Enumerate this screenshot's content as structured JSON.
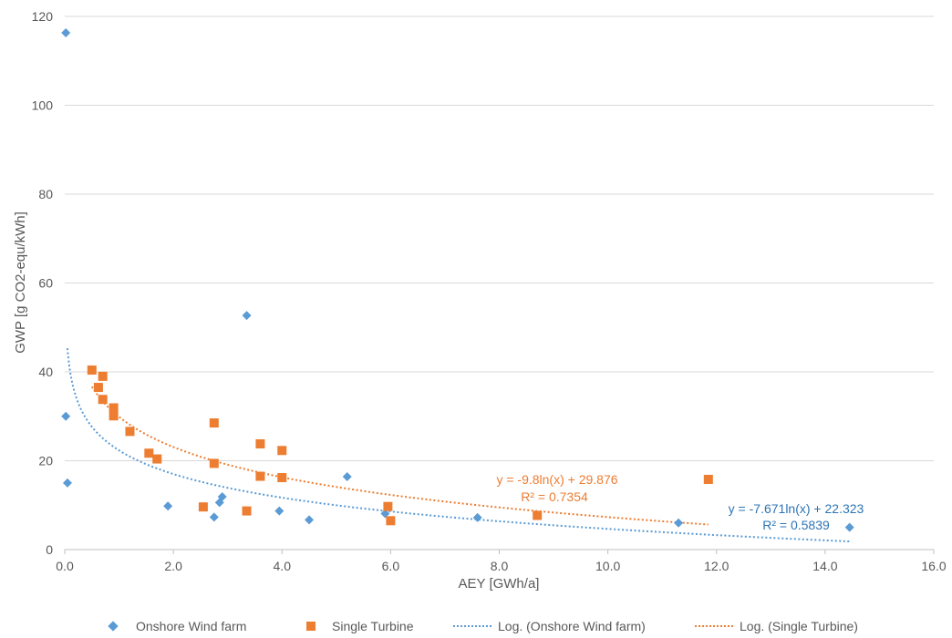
{
  "chart_data": {
    "type": "scatter",
    "title": "",
    "xlabel": "AEY [GWh/a]",
    "ylabel": "GWP [g CO2-equ/kWh]",
    "xlim": [
      0,
      16
    ],
    "ylim": [
      0,
      120
    ],
    "xticks": [
      "0.0",
      "2.0",
      "4.0",
      "6.0",
      "8.0",
      "10.0",
      "12.0",
      "14.0",
      "16.0"
    ],
    "yticks": [
      "0",
      "20",
      "40",
      "60",
      "80",
      "100",
      "120"
    ],
    "grid": "horizontal",
    "legend_position": "bottom",
    "series": [
      {
        "name": "Onshore Wind farm",
        "marker": "diamond",
        "color": "#5b9bd5",
        "points": [
          [
            0.02,
            116.3
          ],
          [
            0.02,
            30.0
          ],
          [
            0.05,
            15.0
          ],
          [
            1.9,
            9.8
          ],
          [
            2.75,
            7.3
          ],
          [
            2.85,
            10.6
          ],
          [
            2.9,
            11.9
          ],
          [
            3.35,
            52.7
          ],
          [
            3.95,
            8.7
          ],
          [
            4.5,
            6.7
          ],
          [
            5.2,
            16.4
          ],
          [
            5.9,
            8.1
          ],
          [
            7.6,
            7.2
          ],
          [
            11.3,
            6.0
          ],
          [
            14.45,
            5.0
          ]
        ]
      },
      {
        "name": "Single Turbine",
        "marker": "square",
        "color": "#ed7d31",
        "points": [
          [
            0.5,
            40.4
          ],
          [
            0.62,
            36.5
          ],
          [
            0.7,
            39.0
          ],
          [
            0.7,
            33.8
          ],
          [
            0.9,
            31.9
          ],
          [
            0.9,
            30.1
          ],
          [
            1.2,
            26.6
          ],
          [
            1.55,
            21.7
          ],
          [
            1.7,
            20.4
          ],
          [
            2.55,
            9.6
          ],
          [
            2.75,
            28.5
          ],
          [
            2.75,
            19.4
          ],
          [
            3.35,
            8.7
          ],
          [
            3.6,
            23.8
          ],
          [
            3.6,
            16.5
          ],
          [
            4.0,
            22.3
          ],
          [
            4.0,
            16.2
          ],
          [
            5.95,
            9.7
          ],
          [
            6.0,
            6.5
          ],
          [
            8.7,
            7.7
          ],
          [
            11.85,
            15.8
          ]
        ]
      }
    ],
    "trendlines": [
      {
        "name": "Log. (Onshore Wind farm)",
        "type": "logarithmic",
        "a": -7.671,
        "b": 22.323,
        "x_range": [
          0.05,
          14.45
        ],
        "color": "#5b9bd5",
        "equation": "y = -7.671ln(x) + 22.323",
        "r2": "R² = 0.5839"
      },
      {
        "name": "Log. (Single Turbine)",
        "type": "logarithmic",
        "a": -9.8,
        "b": 29.876,
        "x_range": [
          0.5,
          11.85
        ],
        "color": "#ed7d31",
        "equation": "y = -9.8ln(x) + 29.876",
        "r2": "R² = 0.7354"
      }
    ]
  }
}
